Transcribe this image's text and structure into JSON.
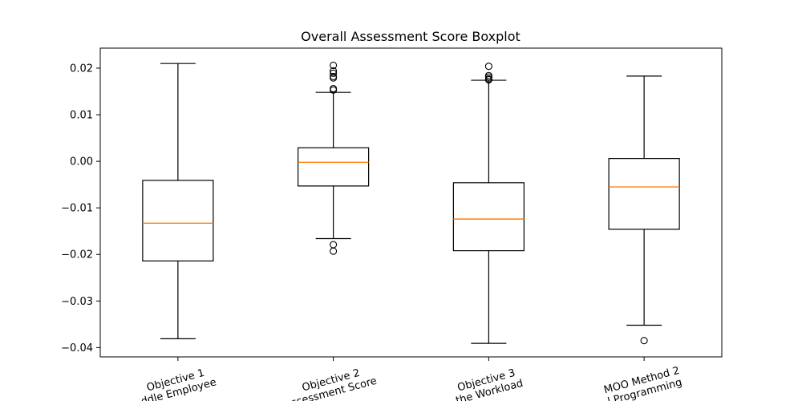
{
  "chart_data": {
    "type": "boxplot",
    "title": "Overall Assessment Score Boxplot",
    "xlabel": "",
    "ylabel": "",
    "ylim": [
      -0.042,
      0.0243
    ],
    "yticks": [
      0.02,
      0.01,
      0.0,
      -0.01,
      -0.02,
      -0.03,
      -0.04
    ],
    "ytick_labels": [
      "0.02",
      "0.01",
      "0.00",
      "−0.01",
      "−0.02",
      "−0.03",
      "−0.04"
    ],
    "categories": [
      {
        "line1": "Objective 1",
        "line2": "ddle Employee"
      },
      {
        "line1": "Objective 2",
        "line2": "ssessment Score"
      },
      {
        "line1": "Objective 3",
        "line2": "the Workload"
      },
      {
        "line1": "MOO Method 2",
        "line2": "l Programming"
      }
    ],
    "boxes": [
      {
        "whisker_low": -0.0381,
        "q1": -0.0214,
        "median": -0.0133,
        "q3": -0.0041,
        "whisker_high": 0.021,
        "outliers": []
      },
      {
        "whisker_low": -0.0166,
        "q1": -0.0053,
        "median": -0.0002,
        "q3": 0.0029,
        "whisker_high": 0.0148,
        "outliers": [
          0.0206,
          0.0194,
          0.0189,
          0.0182,
          0.0179,
          0.0156,
          0.0153,
          -0.0179,
          -0.0193
        ]
      },
      {
        "whisker_low": -0.0391,
        "q1": -0.0192,
        "median": -0.0124,
        "q3": -0.0046,
        "whisker_high": 0.0174,
        "outliers": [
          0.0204,
          0.0184,
          0.0181,
          0.0177,
          0.0175
        ]
      },
      {
        "whisker_low": -0.0352,
        "q1": -0.0146,
        "median": -0.0055,
        "q3": 0.0006,
        "whisker_high": 0.0183,
        "outliers": [
          -0.0385
        ]
      }
    ],
    "colors": {
      "box": "#000000",
      "median": "#ff7f0e",
      "axes": "#000000"
    },
    "grid": false
  }
}
